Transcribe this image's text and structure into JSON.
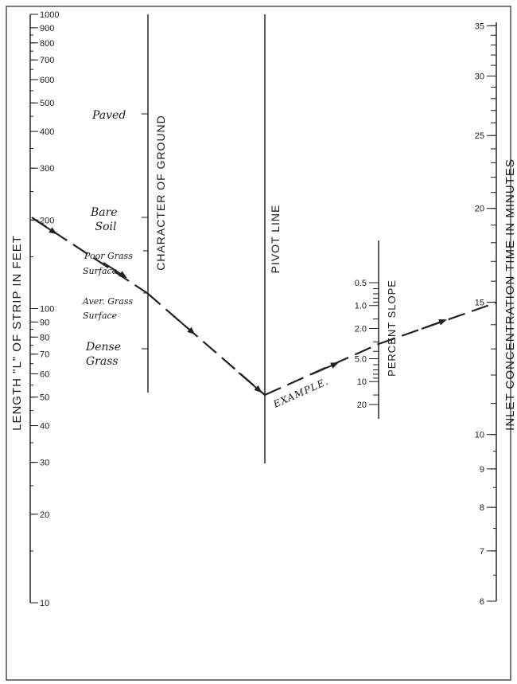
{
  "axes": {
    "length": {
      "title": "LENGTH \"L\" OF STRIP IN FEET",
      "labels": [
        "1000",
        "900",
        "800",
        "700",
        "600",
        "500",
        "400",
        "300",
        "200",
        "100",
        "90",
        "80",
        "70",
        "60",
        "50",
        "40",
        "30",
        "20",
        "10"
      ]
    },
    "ground": {
      "title": "CHARACTER OF GROUND",
      "items": [
        {
          "lines": [
            "Paved"
          ]
        },
        {
          "lines": [
            "Bare",
            "Soil"
          ]
        },
        {
          "lines": [
            "Poor Grass",
            "Surface"
          ]
        },
        {
          "lines": [
            "Aver. Grass",
            "Surface"
          ]
        },
        {
          "lines": [
            "Dense",
            "Grass"
          ]
        }
      ]
    },
    "pivot": {
      "title": "PIVOT LINE"
    },
    "slope": {
      "title": "PERCENT SLOPE",
      "labels": [
        "0.5",
        "1.0",
        "2.0",
        "5.0",
        "10",
        "20"
      ]
    },
    "time": {
      "title": "INLET CONCENTRATION TIME IN MINUTES",
      "labels": [
        "35",
        "30",
        "25",
        "20",
        "15",
        "10",
        "9",
        "8",
        "7",
        "6"
      ]
    }
  },
  "example": {
    "label": "EXAMPLE.",
    "length_ft": 200,
    "ground": "Aver. Grass Surface",
    "slope_percent": 5.0,
    "time_min": 15
  }
}
